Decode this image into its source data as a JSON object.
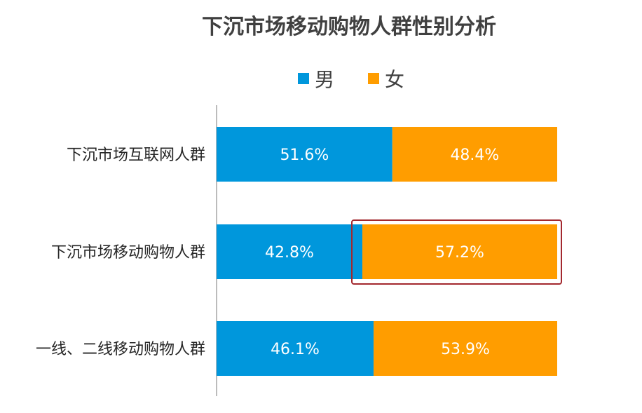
{
  "chart_data": {
    "type": "bar",
    "orientation": "horizontal",
    "stacked": true,
    "percent": true,
    "title": "下沉市场移动购物人群性别分析",
    "categories": [
      "下沉市场互联网人群",
      "下沉市场移动购物人群",
      "一线、二线移动购物人群"
    ],
    "series": [
      {
        "name": "男",
        "color": "#0097DC",
        "values": [
          51.6,
          42.8,
          46.1
        ],
        "labels": [
          "51.6%",
          "42.8%",
          "46.1%"
        ]
      },
      {
        "name": "女",
        "color": "#FF9D00",
        "values": [
          48.4,
          57.2,
          53.9
        ],
        "labels": [
          "48.4%",
          "57.2%",
          "53.9%"
        ]
      }
    ],
    "xlim": [
      0,
      100
    ],
    "grid": false,
    "legend": "top",
    "highlight": {
      "category": "下沉市场移动购物人群",
      "series": "女",
      "color": "#A3282E"
    }
  }
}
